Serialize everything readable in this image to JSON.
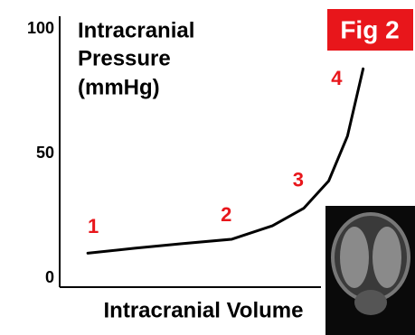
{
  "chart_data": {
    "type": "line",
    "y_label": [
      "Intracranial",
      "Pressure",
      "(mmHg)"
    ],
    "x_label": "Intracranial Volume",
    "badge": "Fig 2",
    "x": [
      9,
      24,
      39,
      55,
      68,
      78,
      86,
      92,
      97
    ],
    "series": [
      {
        "color": "#000000",
        "values": [
          10,
          12,
          13.8,
          15.6,
          21,
          28,
          39,
          57,
          84
        ]
      }
    ],
    "xlim": [
      0,
      100
    ],
    "ylim": [
      0,
      100
    ],
    "yticks": [
      0,
      50,
      100
    ],
    "annotations": [
      {
        "text": "1",
        "x": 9,
        "y": 10
      },
      {
        "text": "2",
        "x": 55,
        "y": 15.6
      },
      {
        "text": "3",
        "x": 78,
        "y": 28
      },
      {
        "text": "4",
        "x": 92,
        "y": 84
      }
    ],
    "annotation_color": "#e8161b",
    "badge_color": "#e8161b"
  }
}
